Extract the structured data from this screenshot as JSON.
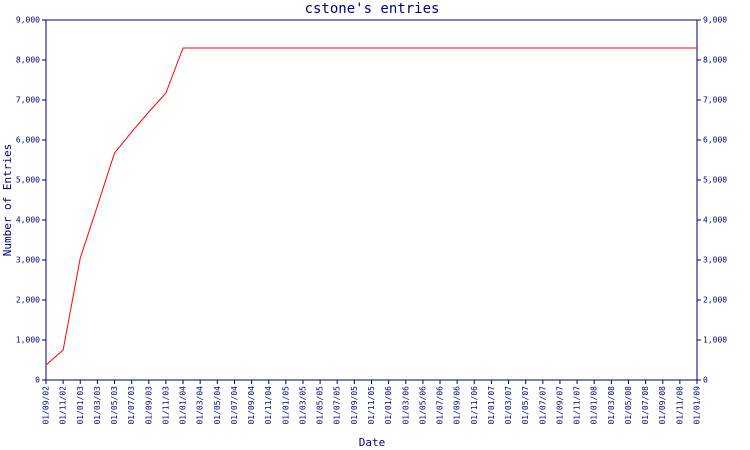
{
  "chart_data": {
    "type": "line",
    "title": "cstone's entries",
    "x_label": "Date",
    "y_label": "Number of Entries",
    "categories": [
      "01/09/02",
      "01/11/02",
      "01/01/03",
      "01/03/03",
      "01/05/03",
      "01/07/03",
      "01/09/03",
      "01/11/03",
      "01/01/04",
      "01/03/04",
      "01/05/04",
      "01/07/04",
      "01/09/04",
      "01/11/04",
      "01/01/05",
      "01/03/05",
      "01/05/05",
      "01/07/05",
      "01/09/05",
      "01/11/05",
      "01/01/06",
      "01/03/06",
      "01/05/06",
      "01/07/06",
      "01/09/06",
      "01/11/06",
      "01/01/07",
      "01/03/07",
      "01/05/07",
      "01/07/07",
      "01/09/07",
      "01/11/07",
      "01/01/08",
      "01/03/08",
      "01/05/08",
      "01/07/08",
      "01/09/08",
      "01/11/08",
      "01/01/09"
    ],
    "series": [
      {
        "color": "#ff0000",
        "values": [
          375,
          750,
          3050,
          4350,
          5675,
          6200,
          6700,
          7175,
          8300,
          8300,
          8300,
          8300,
          8300,
          8300,
          8300,
          8300,
          8300,
          8300,
          8300,
          8300,
          8300,
          8300,
          8300,
          8300,
          8300,
          8300,
          8300,
          8300,
          8300,
          8300,
          8300,
          8300,
          8300,
          8300,
          8300,
          8300,
          8300,
          8300,
          8300
        ]
      }
    ],
    "ylim": [
      0,
      9000
    ],
    "yticks": [
      0,
      {
        "value": 1000,
        "label": "1,000"
      },
      {
        "value": 2000,
        "label": "2,000"
      },
      {
        "value": 3000,
        "label": "3,000"
      },
      {
        "value": 4000,
        "label": "4,000"
      },
      {
        "value": 5000,
        "label": "5,000"
      },
      {
        "value": 6000,
        "label": "6,000"
      },
      {
        "value": 7000,
        "label": "7,000"
      },
      {
        "value": 8000,
        "label": "8,000"
      },
      {
        "value": 9000,
        "label": "9,000"
      }
    ],
    "axis_color": "#000080"
  }
}
